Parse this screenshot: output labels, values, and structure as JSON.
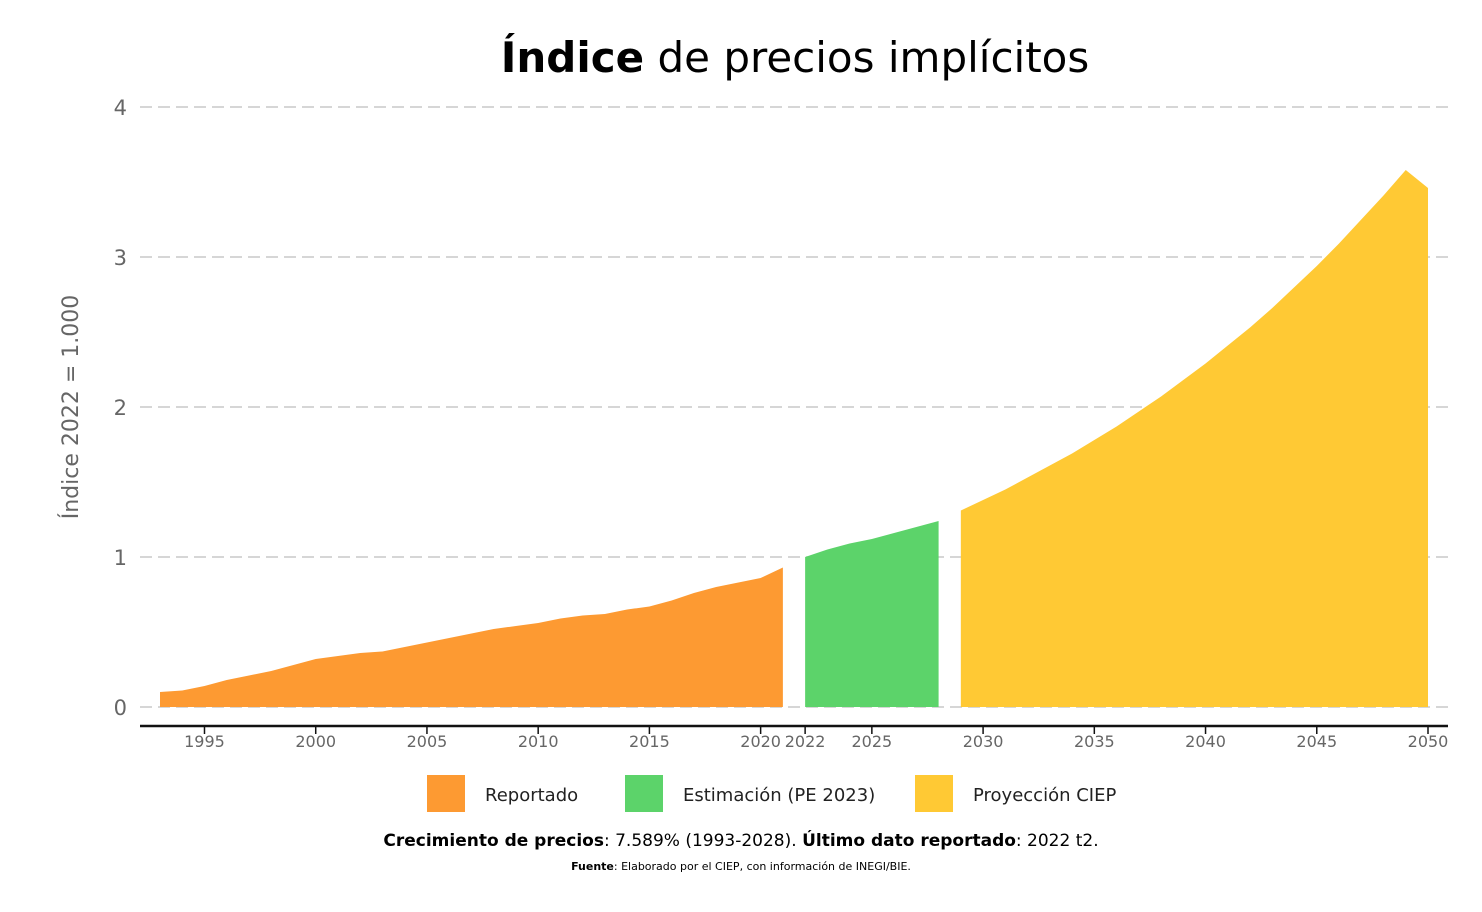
{
  "title": {
    "bold": "Índice",
    "rest": " de precios implícitos"
  },
  "chart_data": {
    "type": "area",
    "ylabel": "Índice 2022 = 1.000",
    "xlabel": "",
    "ylim": [
      0,
      4
    ],
    "yticks": [
      "0",
      "1",
      "2",
      "3",
      "4"
    ],
    "xticks": [
      {
        "value": 1995,
        "label": "1995"
      },
      {
        "value": 2000,
        "label": "2000"
      },
      {
        "value": 2005,
        "label": "2005"
      },
      {
        "value": 2010,
        "label": "2010"
      },
      {
        "value": 2015,
        "label": "2015"
      },
      {
        "value": 2020,
        "label": "2020"
      },
      {
        "value": 2022,
        "label": "2022"
      },
      {
        "value": 2025,
        "label": "2025"
      },
      {
        "value": 2030,
        "label": "2030"
      },
      {
        "value": 2035,
        "label": "2035"
      },
      {
        "value": 2040,
        "label": "2040"
      },
      {
        "value": 2045,
        "label": "2045"
      },
      {
        "value": 2050,
        "label": "2050"
      }
    ],
    "grid": "horizontal dashed",
    "legend_position": "bottom",
    "series": [
      {
        "name": "Reportado",
        "color": "#FD9A32",
        "x": [
          1993,
          1994,
          1995,
          1996,
          1997,
          1998,
          1999,
          2000,
          2001,
          2002,
          2003,
          2004,
          2005,
          2006,
          2007,
          2008,
          2009,
          2010,
          2011,
          2012,
          2013,
          2014,
          2015,
          2016,
          2017,
          2018,
          2019,
          2020,
          2021
        ],
        "y": [
          0.1,
          0.11,
          0.14,
          0.18,
          0.21,
          0.24,
          0.28,
          0.32,
          0.34,
          0.36,
          0.37,
          0.4,
          0.43,
          0.46,
          0.49,
          0.52,
          0.54,
          0.56,
          0.59,
          0.61,
          0.62,
          0.65,
          0.67,
          0.71,
          0.76,
          0.8,
          0.83,
          0.86,
          0.93
        ]
      },
      {
        "name": "Estimación (PE 2023)",
        "color": "#5CD36A",
        "x": [
          2022,
          2023,
          2024,
          2025,
          2026,
          2027,
          2028
        ],
        "y": [
          1.0,
          1.05,
          1.09,
          1.12,
          1.16,
          1.2,
          1.24
        ]
      },
      {
        "name": "Proyección CIEP",
        "color": "#FFC934",
        "x": [
          2029,
          2030,
          2031,
          2032,
          2033,
          2034,
          2035,
          2036,
          2037,
          2038,
          2039,
          2040,
          2041,
          2042,
          2043,
          2044,
          2045,
          2046,
          2047,
          2048,
          2049,
          2050
        ],
        "y": [
          1.31,
          1.38,
          1.45,
          1.53,
          1.61,
          1.69,
          1.78,
          1.87,
          1.97,
          2.07,
          2.18,
          2.29,
          2.41,
          2.53,
          2.66,
          2.8,
          2.94,
          3.09,
          3.25,
          3.41,
          3.58,
          3.46
        ]
      }
    ]
  },
  "note": {
    "label1": "Crecimiento de precios",
    "text1": ": 7.589% (1993-2028). ",
    "label2": "Último dato reportado",
    "text2": ": 2022 t2."
  },
  "source": {
    "label": "Fuente",
    "text": ": Elaborado por el CIEP, con información de INEGI/BIE."
  }
}
